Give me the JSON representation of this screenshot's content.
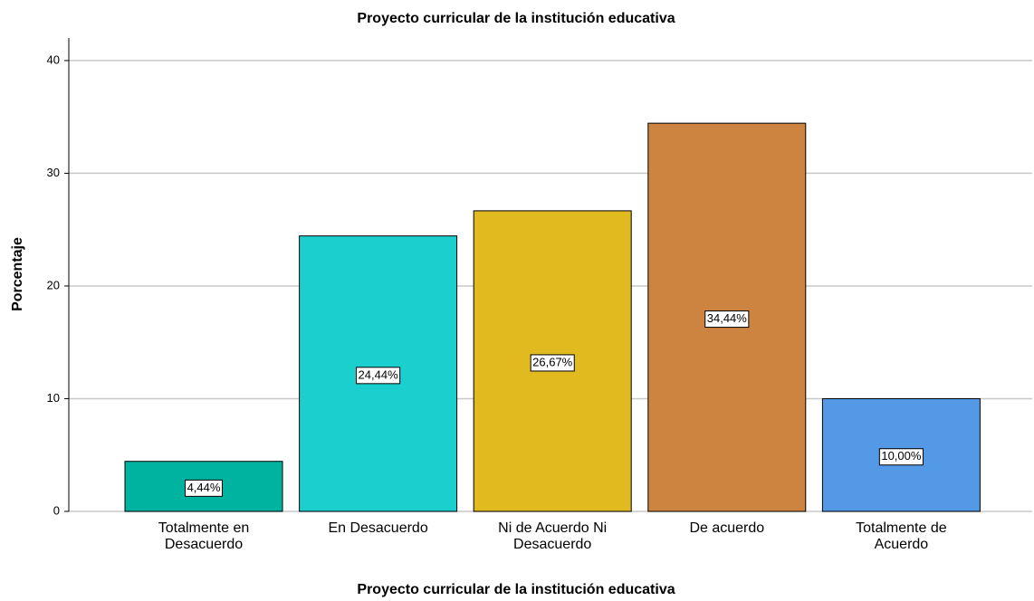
{
  "chart_data": {
    "type": "bar",
    "title": "Proyecto curricular de la institución educativa",
    "x_label": "Proyecto curricular de la institución educativa",
    "y_label": "Porcentaje",
    "categories": [
      "Totalmente en Desacuerdo",
      "En Desacuerdo",
      "Ni de Acuerdo Ni Desacuerdo",
      "De acuerdo",
      "Totalmente de Acuerdo"
    ],
    "values": [
      4.44,
      24.44,
      26.67,
      34.44,
      10.0
    ],
    "value_labels": [
      "4,44%",
      "24,44%",
      "26,67%",
      "34,44%",
      "10,00%"
    ],
    "colors": [
      "#00b2a0",
      "#1ccfcf",
      "#e0ba1f",
      "#cc8440",
      "#5499e6"
    ],
    "ylim": [
      0,
      42
    ],
    "yticks": [
      0,
      10,
      20,
      30,
      40
    ],
    "grid": true
  }
}
